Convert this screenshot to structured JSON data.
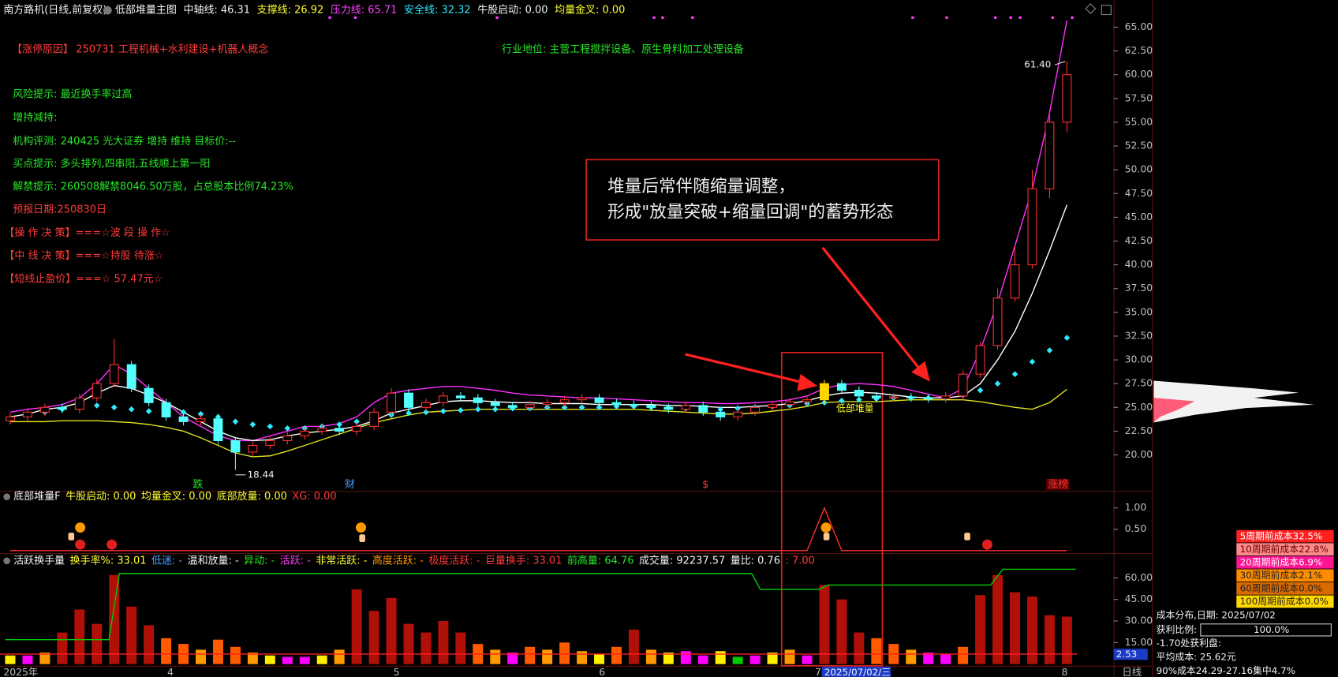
{
  "header": {
    "title": "南方路机(日线,前复权)",
    "indicator": "低部堆量主图",
    "items": [
      "中轴线: 46.31",
      "支撑线: 26.92",
      "压力线: 65.71",
      "安全线: 32.32",
      "牛股启动: 0.00",
      "均量金叉: 0.00"
    ]
  },
  "info": {
    "limit_up_reason": "【涨停原因】",
    "reason_text": "250731 工程机械+水利建设+机器人概念",
    "industry": "行业地位: 主营工程搅拌设备、原生骨料加工处理设备",
    "lines": [
      "风险提示: 最近换手率过高",
      "增持减持:",
      "机构评测: 240425 光大证券 增持 维持 目标价:--",
      "买点提示: 多头排列,四串阳,五线顺上第一阳",
      "解禁提示: 260508解禁8046.50万股，占总股本比例74.23%"
    ],
    "red_lines": [
      "预报日期:250830日",
      "【操 作 决 策】===☆波 段 操 作☆",
      "【中 线 决 策】===☆持股 待涨☆",
      "【短线止盈价】===☆ 57.47元☆"
    ]
  },
  "callout": [
    "堆量后常伴随缩量调整，",
    "形成\"放量突破+缩量回调\"的蓄势形态"
  ],
  "markers": {
    "fall": "跌",
    "finance": "财",
    "dollar": "$",
    "rank": "涨榜",
    "bottom_volume": "低部堆量"
  },
  "panel2": {
    "title": "底部堆量F",
    "items": [
      "牛股启动: 0.00",
      "均量金叉: 0.00",
      "底部放量: 0.00",
      "XG: 0.00"
    ]
  },
  "panel3": {
    "title": "活跃换手量",
    "items": [
      "换手率%: 33.01",
      "低迷: -",
      "温和放量: -",
      "异动: -",
      "活跃: -",
      "非常活跃: -",
      "高度活跃: -",
      "极度活跃: -",
      "巨量换手: 33.01",
      "前高量: 64.76",
      "成交量: 92237.57",
      "量比: 0.76"
    ]
  },
  "x_axis": [
    "2025年",
    "4",
    "5",
    "6",
    "7",
    "8"
  ],
  "selected_date": "2025/07/02/三",
  "period": "日线",
  "cursor_value": "2.53",
  "cost": {
    "periods": [
      "5周期前成本32.5%",
      "10周期前成本22.8%",
      "20周期前成本6.9%",
      "30周期前成本2.1%",
      "60周期前成本0.0%",
      "100周期前成本0.0%"
    ],
    "title": "成本分布,日期: 2025/07/02",
    "profit_label": "获利比例:",
    "profit_value": "100.0%",
    "profit_at": "-1.70处获利盘:",
    "avg_cost": "平均成本: 25.62元",
    "range": "90%成本24.29-27.16集中4.7%"
  },
  "chart_data": [
    {
      "type": "candlestick",
      "open": [
        23.6,
        24.0,
        24.5,
        25.0,
        24.8,
        26.0,
        27.5,
        29.5,
        27.0,
        25.5,
        24.0,
        23.5,
        23.8,
        21.5,
        20.3,
        21.0,
        21.5,
        22.0,
        22.5,
        22.8,
        22.5,
        23.0,
        24.5,
        26.5,
        25.0,
        25.5,
        26.2,
        26.0,
        25.5,
        25.2,
        25.0,
        25.3,
        25.5,
        25.8,
        26.0,
        25.5,
        25.3,
        25.2,
        25.0,
        24.8,
        25.2,
        24.5,
        24.0,
        24.5,
        25.0,
        25.3,
        25.6,
        25.8,
        27.5,
        26.8,
        26.2,
        26.0,
        26.1,
        26.0,
        25.9,
        26.2,
        28.5,
        31.5,
        36.5,
        40.0,
        48.0,
        55.0
      ],
      "high": [
        24.4,
        24.9,
        25.4,
        25.4,
        26.4,
        28.0,
        32.2,
        29.9,
        27.4,
        25.9,
        24.4,
        24.2,
        24.2,
        21.9,
        21.4,
        21.9,
        22.4,
        22.9,
        23.2,
        23.2,
        23.4,
        24.9,
        27.0,
        26.9,
        25.9,
        26.6,
        26.6,
        26.4,
        25.9,
        25.6,
        25.7,
        25.9,
        26.2,
        26.4,
        26.4,
        25.9,
        25.7,
        25.6,
        25.4,
        25.6,
        25.6,
        24.9,
        24.9,
        25.4,
        25.7,
        26.0,
        26.2,
        27.9,
        27.9,
        27.2,
        26.6,
        26.5,
        26.5,
        26.4,
        26.6,
        28.9,
        31.9,
        37.5,
        42.0,
        50.0,
        56.0,
        61.4
      ],
      "low": [
        23.2,
        23.6,
        24.1,
        24.4,
        24.4,
        25.6,
        27.1,
        26.6,
        25.1,
        23.6,
        23.1,
        23.1,
        21.1,
        18.44,
        19.9,
        20.6,
        21.1,
        21.6,
        22.1,
        22.1,
        22.1,
        22.6,
        24.1,
        24.6,
        24.6,
        25.1,
        25.6,
        25.1,
        24.8,
        24.6,
        24.6,
        24.9,
        25.1,
        25.4,
        25.1,
        24.9,
        24.8,
        24.6,
        24.4,
        24.4,
        24.1,
        23.6,
        23.6,
        24.1,
        24.6,
        24.9,
        25.2,
        25.4,
        26.4,
        25.8,
        25.6,
        25.6,
        25.6,
        25.5,
        25.5,
        25.8,
        28.1,
        31.1,
        36.1,
        39.6,
        47.0,
        54.0
      ],
      "close": [
        24.0,
        24.5,
        25.0,
        24.8,
        26.0,
        27.5,
        29.5,
        27.0,
        25.5,
        24.0,
        23.5,
        23.8,
        21.5,
        20.3,
        21.0,
        21.5,
        22.0,
        22.5,
        22.8,
        22.5,
        23.0,
        24.5,
        26.5,
        25.0,
        25.5,
        26.2,
        26.0,
        25.5,
        25.2,
        25.0,
        25.3,
        25.5,
        25.8,
        26.0,
        25.5,
        25.3,
        25.2,
        25.0,
        24.8,
        25.2,
        24.5,
        24.0,
        24.5,
        25.0,
        25.3,
        25.6,
        25.8,
        27.5,
        26.8,
        26.2,
        26.0,
        26.1,
        26.0,
        25.9,
        26.2,
        28.5,
        31.5,
        36.5,
        40.0,
        48.0,
        55.0,
        60.0
      ],
      "up_color": "#ff3030",
      "down_color": "#54ffff",
      "highlight": {
        "index": 47,
        "color": "#ffd700"
      },
      "extreme_labels": {
        "high": "61.40",
        "low": "18.44"
      },
      "lines": [
        {
          "color": "#ff30ff",
          "values": [
            24.5,
            24.8,
            25.0,
            25.3,
            26.0,
            27.5,
            29.5,
            28.5,
            27.0,
            25.5,
            24.0,
            23.0,
            22.0,
            21.5,
            21.5,
            22.0,
            22.5,
            23.0,
            23.0,
            23.3,
            24.0,
            25.5,
            26.5,
            26.8,
            27.0,
            27.2,
            27.2,
            27.0,
            26.8,
            26.5,
            26.3,
            26.2,
            26.1,
            26.0,
            26.0,
            25.9,
            25.8,
            25.7,
            25.6,
            25.5,
            25.5,
            25.4,
            25.4,
            25.5,
            25.6,
            25.8,
            26.2,
            27.0,
            27.4,
            27.5,
            27.4,
            27.2,
            26.8,
            26.4,
            26.0,
            27.0,
            31.0,
            36.0,
            42.0,
            48.0,
            56.0,
            65.71
          ]
        },
        {
          "color": "#ffffff",
          "values": [
            24.0,
            24.3,
            24.8,
            25.0,
            25.5,
            26.5,
            27.3,
            27.0,
            26.3,
            25.5,
            24.5,
            23.5,
            22.5,
            21.8,
            21.5,
            21.6,
            22.0,
            22.3,
            22.5,
            22.7,
            23.0,
            23.6,
            24.4,
            24.8,
            25.2,
            25.6,
            25.7,
            25.7,
            25.6,
            25.5,
            25.5,
            25.4,
            25.4,
            25.4,
            25.3,
            25.3,
            25.3,
            25.3,
            25.2,
            25.2,
            25.1,
            25.0,
            25.0,
            25.1,
            25.2,
            25.4,
            25.7,
            26.2,
            26.5,
            26.6,
            26.5,
            26.3,
            26.1,
            26.0,
            26.0,
            26.2,
            27.5,
            30.0,
            33.0,
            37.0,
            41.5,
            46.3
          ]
        },
        {
          "color": "#e0e020",
          "values": [
            23.5,
            23.5,
            23.5,
            23.6,
            23.6,
            23.6,
            23.5,
            23.4,
            23.2,
            22.9,
            22.5,
            21.8,
            21.0,
            20.2,
            19.8,
            19.9,
            20.4,
            21.0,
            21.6,
            22.2,
            22.8,
            23.4,
            23.8,
            24.2,
            24.5,
            24.6,
            24.7,
            24.8,
            24.8,
            24.8,
            24.8,
            24.8,
            24.8,
            24.8,
            24.8,
            24.8,
            24.8,
            24.7,
            24.6,
            24.5,
            24.4,
            24.3,
            24.3,
            24.4,
            24.6,
            24.8,
            25.1,
            25.5,
            25.6,
            25.6,
            25.6,
            25.7,
            25.8,
            25.8,
            25.8,
            25.8,
            25.6,
            25.3,
            25.0,
            24.8,
            25.5,
            26.9
          ]
        },
        {
          "color": "#30e8ff",
          "style": "dots",
          "values": [
            23.8,
            24.2,
            24.5,
            24.8,
            25.0,
            25.2,
            25.0,
            24.8,
            24.6,
            24.5,
            24.5,
            24.3,
            24.0,
            23.5,
            23.2,
            23.0,
            22.8,
            22.8,
            23.0,
            23.2,
            23.5,
            23.8,
            24.2,
            24.4,
            24.5,
            24.6,
            24.7,
            24.8,
            24.8,
            24.9,
            24.9,
            25.0,
            25.0,
            25.0,
            25.0,
            25.1,
            25.1,
            25.0,
            25.0,
            24.9,
            24.8,
            24.8,
            24.9,
            25.0,
            25.1,
            25.2,
            25.4,
            25.5,
            25.7,
            25.8,
            25.9,
            26.0,
            26.0,
            26.0,
            26.0,
            26.3,
            26.8,
            27.5,
            28.5,
            29.8,
            31.0,
            32.32
          ]
        }
      ],
      "ylim": [
        16.4,
        67.4
      ],
      "yticks": [
        {
          "value": 65,
          "label": "65.00"
        },
        {
          "value": 62.5,
          "label": "62.50"
        },
        {
          "value": 60,
          "label": "60.00"
        },
        {
          "value": 57.5,
          "label": "57.50"
        },
        {
          "value": 55,
          "label": "55.00"
        },
        {
          "value": 52.5,
          "label": "52.50"
        },
        {
          "value": 50,
          "label": "50.00"
        },
        {
          "value": 47.5,
          "label": "47.50"
        },
        {
          "value": 45,
          "label": "45.00"
        },
        {
          "value": 42.5,
          "label": "42.50"
        },
        {
          "value": 40,
          "label": "40.00"
        },
        {
          "value": 37.5,
          "label": "37.50"
        },
        {
          "value": 35,
          "label": "35.00"
        },
        {
          "value": 32.5,
          "label": "32.50"
        },
        {
          "value": 30,
          "label": "30.00"
        },
        {
          "value": 27.5,
          "label": "27.50"
        },
        {
          "value": 25,
          "label": "25.00"
        },
        {
          "value": 22.5,
          "label": "22.50"
        },
        {
          "value": 20,
          "label": "20.00"
        }
      ]
    },
    {
      "type": "line",
      "color": "#ff3030",
      "values": [
        0,
        0,
        0,
        0,
        0,
        0,
        0,
        0,
        0,
        0,
        0,
        0,
        0,
        0,
        0,
        0,
        0,
        0,
        0,
        0,
        0,
        0,
        0,
        0,
        0,
        0,
        0,
        0,
        0,
        0,
        0,
        0,
        0,
        0,
        0,
        0,
        0,
        0,
        0,
        0,
        0,
        0,
        0,
        0,
        0,
        0,
        0,
        1,
        0,
        0,
        0,
        0,
        0,
        0,
        0,
        0,
        0,
        0,
        0,
        0,
        0,
        0
      ],
      "ylim": [
        0,
        1.36
      ],
      "yticks": [
        {
          "value": 1,
          "label": "1.00"
        },
        {
          "value": 0.5,
          "label": "0.50"
        }
      ]
    },
    {
      "type": "bar",
      "values": [
        6,
        6,
        8,
        22,
        38,
        28,
        62,
        40,
        27,
        18,
        14,
        10,
        17,
        12,
        8,
        6,
        5,
        5,
        6,
        10,
        52,
        37,
        46,
        28,
        22,
        30,
        22,
        14,
        10,
        8,
        12,
        10,
        15,
        9,
        7,
        12,
        24,
        10,
        8,
        9,
        6,
        9,
        5,
        6,
        8,
        10,
        6,
        55,
        45,
        22,
        18,
        14,
        10,
        8,
        7,
        12,
        48,
        62,
        50,
        47,
        34,
        33
      ],
      "colors": [
        "#ffee00",
        "#ff00ff",
        "#ff9900",
        "#b01008",
        "#b01008",
        "#b01008",
        "#b01008",
        "#b01008",
        "#b01008",
        "#ff5a00",
        "#ff5a00",
        "#ff9900",
        "#ff5a00",
        "#ff5a00",
        "#ff9900",
        "#ffee00",
        "#ff00ff",
        "#ff00ff",
        "#ffee00",
        "#ff9900",
        "#b01008",
        "#b01008",
        "#b01008",
        "#b01008",
        "#b01008",
        "#b01008",
        "#b01008",
        "#ff5a00",
        "#ff9900",
        "#ff00ff",
        "#ff5a00",
        "#ff9900",
        "#ff5a00",
        "#ff9900",
        "#ffee00",
        "#ff5a00",
        "#b01008",
        "#ff9900",
        "#ffee00",
        "#ff00ff",
        "#ff00ff",
        "#ffee00",
        "#00cc00",
        "#ff00ff",
        "#ffee00",
        "#ff9900",
        "#ff00ff",
        "#b01008",
        "#b01008",
        "#b01008",
        "#ff5a00",
        "#ff5a00",
        "#ff9900",
        "#ff00ff",
        "#ff00ff",
        "#ff5a00",
        "#b01008",
        "#b01008",
        "#b01008",
        "#b01008",
        "#b01008",
        "#b01008"
      ],
      "step_line": {
        "color": "#00cc00",
        "x": [
          -0.3,
          5.7,
          6.3,
          42.8,
          43.3,
          46.7,
          47.2,
          56.6,
          57.3,
          61.5
        ],
        "values": [
          17,
          17,
          63,
          63,
          52,
          52,
          55,
          55,
          66,
          66
        ]
      },
      "ref_line": {
        "value": 7,
        "label": ": 7.00",
        "color": "#ff2020"
      },
      "ylim": [
        0,
        76
      ],
      "yticks": [
        {
          "value": 60,
          "label": "60.00"
        },
        {
          "value": 45,
          "label": "45.00"
        },
        {
          "value": 30,
          "label": "30.00"
        },
        {
          "value": 15,
          "label": "15.00"
        }
      ]
    }
  ]
}
